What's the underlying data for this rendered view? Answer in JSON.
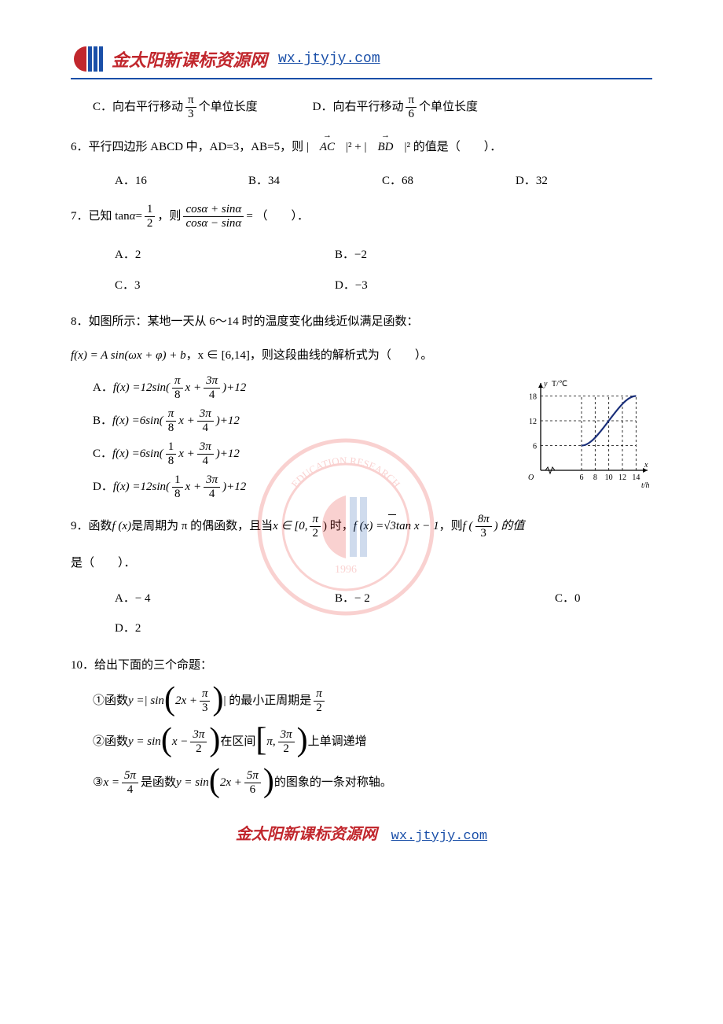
{
  "brand": {
    "name": "金太阳新课标资源网",
    "url": "wx.jtyjy.com",
    "logo_colors": {
      "red": "#c1272d",
      "blue": "#1a4fa8"
    }
  },
  "q5": {
    "c_prefix": "C．向右平行移动",
    "c_frac_num": "π",
    "c_frac_den": "3",
    "c_suffix": "个单位长度",
    "d_prefix": "D．向右平行移动",
    "d_frac_num": "π",
    "d_frac_den": "6",
    "d_suffix": "个单位长度"
  },
  "q6": {
    "stem_1": "6．平行四边形 ABCD 中，AD=3，AB=5，则 |",
    "vec1": "AC",
    "stem_2": "|² + |",
    "vec2": "BD",
    "stem_3": "|² 的值是（　　）．",
    "opts": {
      "a": "A．16",
      "b": "B．34",
      "c": "C．68",
      "d": "D．32"
    }
  },
  "q7": {
    "stem_1": "7．已知 tan",
    "alpha": "α",
    "eq": " = ",
    "half_num": "1",
    "half_den": "2",
    "stem_2": "，则 ",
    "frac_num": "cosα + sinα",
    "frac_den": "cosα − sinα",
    "stem_3": " = （　　）．",
    "opts": {
      "a": "A．2",
      "b": "B．−2",
      "c": "C．3",
      "d": "D．−3"
    }
  },
  "q8": {
    "stem_1": "8．如图所示：某地一天从 6～14 时的温度变化曲线近似满足函数：",
    "stem_2a": "f(x) = A sin(ωx + φ) + b",
    "stem_2b": "，x ∈ [6,14]，则这段曲线的解析式为（　　）。",
    "a": {
      "label": "A．",
      "amp": "12",
      "o_num": "π",
      "o_den": "8",
      "p_num": "3π",
      "p_den": "4",
      "off": "+12"
    },
    "b": {
      "label": "B．",
      "amp": "6",
      "o_num": "π",
      "o_den": "8",
      "p_num": "3π",
      "p_den": "4",
      "off": "+12"
    },
    "c": {
      "label": "C．",
      "amp": "6",
      "o_num": "1",
      "o_den": "8",
      "p_num": "3π",
      "p_den": "4",
      "off": "+12"
    },
    "d": {
      "label": "D．",
      "amp": "12",
      "o_num": "1",
      "o_den": "8",
      "p_num": "3π",
      "p_den": "4",
      "off": "+12"
    },
    "chart": {
      "type": "line",
      "x_ticks": [
        "6",
        "8",
        "10",
        "12",
        "14"
      ],
      "y_ticks": [
        "6",
        "12",
        "18"
      ],
      "y_axis_label": "T/℃",
      "x_axis_label": "t/h",
      "curve_points": [
        [
          6,
          6
        ],
        [
          8,
          8
        ],
        [
          10,
          12
        ],
        [
          12,
          16
        ],
        [
          14,
          18
        ]
      ],
      "dash_v": [
        6,
        8,
        10,
        12,
        14
      ],
      "dash_h": [
        6,
        12,
        18
      ],
      "xlim": [
        0,
        15
      ],
      "ylim": [
        0,
        20
      ],
      "axis_color": "#000000",
      "curve_color": "#1a2f7a",
      "curve_width": 2.2,
      "dash_color": "#000000",
      "background_color": "#ffffff",
      "tick_fontsize": 10
    }
  },
  "q9": {
    "stem_1": "9．函数 ",
    "fx": "f (x)",
    "stem_2": " 是周期为 π 的偶函数，且当 ",
    "x_in": "x ∈ [0, ",
    "pi2_num": "π",
    "pi2_den": "2",
    "stem_3": ") 时，",
    "fx_eq": "f (x) = ",
    "sqrt_in": "3",
    "tan": " tan x − 1",
    "stem_4": "，则 ",
    "f_of": "f (",
    "arg_num": "8π",
    "arg_den": "3",
    "stem_5": ") 的值",
    "stem_6": "是（　　）．",
    "opts": {
      "a": "A．− 4",
      "b": "B．− 2",
      "c": "C．0",
      "d": "D．2"
    }
  },
  "q10": {
    "stem": "10．给出下面的三个命题：",
    "p1_a": "①函数 ",
    "p1_y": "y =| sin",
    "p1_in": "2x + ",
    "p1_num": "π",
    "p1_den": "3",
    "p1_b": "| 的最小正周期是 ",
    "p1_num2": "π",
    "p1_den2": "2",
    "p2_a": "②函数 ",
    "p2_y": "y = sin",
    "p2_in": "x − ",
    "p2_num": "3π",
    "p2_den": "2",
    "p2_b": " 在区间 ",
    "p2_lo": "π, ",
    "p2_hi_num": "3π",
    "p2_hi_den": "2",
    "p2_c": " 上单调递增",
    "p3_a": "③ ",
    "p3_x": "x = ",
    "p3_num": "5π",
    "p3_den": "4",
    "p3_b": " 是函数 ",
    "p3_y": "y = sin",
    "p3_in": "2x + ",
    "p3_num2": "5π",
    "p3_den2": "6",
    "p3_c": " 的图象的一条对称轴。"
  },
  "watermark": {
    "text_top": "EDUCATION RESEARCH",
    "year": "1996",
    "color_red": "#e8342f",
    "color_blue": "#2a5fb0"
  }
}
